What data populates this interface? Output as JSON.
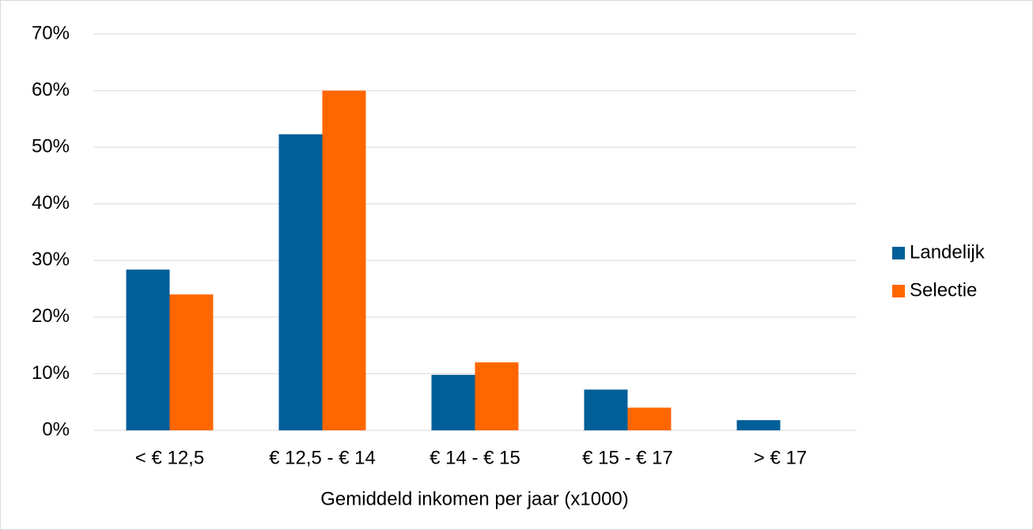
{
  "chart_data": {
    "type": "bar",
    "x_label": "Gemiddeld inkomen per jaar (x1000)",
    "categories": [
      "< € 12,5",
      "€ 12,5 - € 14",
      "€ 14 - € 15",
      "€ 15 - € 17",
      "> € 17"
    ],
    "series": [
      {
        "name": "Landelijk",
        "color": "#005f99",
        "values": [
          28.4,
          52.3,
          9.8,
          7.2,
          1.8
        ]
      },
      {
        "name": "Selectie",
        "color": "#ff6600",
        "values": [
          24,
          60,
          12,
          4,
          0
        ]
      }
    ],
    "ylim": [
      0,
      70
    ],
    "yticks": [
      {
        "value": 0,
        "label": "0%"
      },
      {
        "value": 10,
        "label": "10%"
      },
      {
        "value": 20,
        "label": "20%"
      },
      {
        "value": 30,
        "label": "30%"
      },
      {
        "value": 40,
        "label": "40%"
      },
      {
        "value": 50,
        "label": "50%"
      },
      {
        "value": 60,
        "label": "60%"
      },
      {
        "value": 70,
        "label": "70%"
      }
    ],
    "grid": true,
    "legend": "right"
  }
}
